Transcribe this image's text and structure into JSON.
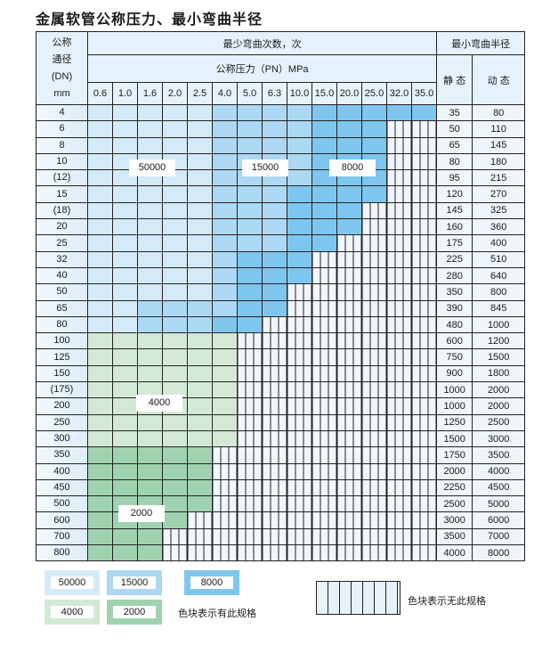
{
  "title": "金属软管公称压力、最小弯曲半径",
  "header": {
    "dn_lines": [
      "公称",
      "通径",
      "(DN)",
      "mm"
    ],
    "cycles": "最少弯曲次数，次",
    "radius": "最小弯曲半径",
    "pressure": "公称压力（PN）MPa",
    "static": "静 态",
    "dynamic": "动 态",
    "pressures": [
      "0.6",
      "1.0",
      "1.6",
      "2.0",
      "2.5",
      "4.0",
      "5.0",
      "6.3",
      "10.0",
      "15.0",
      "20.0",
      "25.0",
      "32.0",
      "35.0"
    ]
  },
  "colors": {
    "L": "#d5eaf8",
    "M": "#acd8f3",
    "D": "#7fc6ee",
    "G": "#d3e9d6",
    "H": "#9fd3b0",
    "none": "#f0f6fb"
  },
  "tone_values": {
    "L": "50000",
    "M": "15000",
    "D": "8000",
    "G": "4000",
    "H": "2000"
  },
  "rows": [
    {
      "dn": "4",
      "static": "35",
      "dynamic": "80",
      "cells": "LLLLLMMMMDDDDD"
    },
    {
      "dn": "6",
      "static": "50",
      "dynamic": "110",
      "cells": "LLLLLMMMMDDD--"
    },
    {
      "dn": "8",
      "static": "65",
      "dynamic": "145",
      "cells": "LLLLLMMMMDDD--"
    },
    {
      "dn": "10",
      "static": "80",
      "dynamic": "180",
      "cells": "LLLLLMMMMDDD--"
    },
    {
      "dn": "(12)",
      "static": "95",
      "dynamic": "215",
      "cells": "LLLLLMMMMDDD--"
    },
    {
      "dn": "15",
      "static": "120",
      "dynamic": "270",
      "cells": "LLLLLMMMDDDD--"
    },
    {
      "dn": "(18)",
      "static": "145",
      "dynamic": "325",
      "cells": "LLLLLMMMDDD---"
    },
    {
      "dn": "20",
      "static": "160",
      "dynamic": "360",
      "cells": "LLLLLMMMDDD---"
    },
    {
      "dn": "25",
      "static": "175",
      "dynamic": "400",
      "cells": "LLLLLMMMDD----"
    },
    {
      "dn": "32",
      "static": "225",
      "dynamic": "510",
      "cells": "LLLLLMDDD-----"
    },
    {
      "dn": "40",
      "static": "280",
      "dynamic": "640",
      "cells": "LLLLLMDDD-----"
    },
    {
      "dn": "50",
      "static": "350",
      "dynamic": "800",
      "cells": "LLLLLMDD------"
    },
    {
      "dn": "65",
      "static": "390",
      "dynamic": "845",
      "cells": "LLMMMMDD------"
    },
    {
      "dn": "80",
      "static": "480",
      "dynamic": "1000",
      "cells": "LLMMMDD-------"
    },
    {
      "dn": "100",
      "static": "600",
      "dynamic": "1200",
      "cells": "GGGGGG--------"
    },
    {
      "dn": "125",
      "static": "750",
      "dynamic": "1500",
      "cells": "GGGGGG--------"
    },
    {
      "dn": "150",
      "static": "900",
      "dynamic": "1800",
      "cells": "GGGGGG--------"
    },
    {
      "dn": "(175)",
      "static": "1000",
      "dynamic": "2000",
      "cells": "GGGGGG--------"
    },
    {
      "dn": "200",
      "static": "1000",
      "dynamic": "2000",
      "cells": "GGGGGG--------"
    },
    {
      "dn": "250",
      "static": "1250",
      "dynamic": "2500",
      "cells": "GGGGGG--------"
    },
    {
      "dn": "300",
      "static": "1500",
      "dynamic": "3000",
      "cells": "GGGGGG--------"
    },
    {
      "dn": "350",
      "static": "1750",
      "dynamic": "3500",
      "cells": "HHHHH---------"
    },
    {
      "dn": "400",
      "static": "2000",
      "dynamic": "4000",
      "cells": "HHHHH---------"
    },
    {
      "dn": "450",
      "static": "2250",
      "dynamic": "4500",
      "cells": "HHHHH---------"
    },
    {
      "dn": "500",
      "static": "2500",
      "dynamic": "5000",
      "cells": "HHHHH---------"
    },
    {
      "dn": "600",
      "static": "3000",
      "dynamic": "6000",
      "cells": "HHHH----------"
    },
    {
      "dn": "700",
      "static": "3500",
      "dynamic": "7000",
      "cells": "HHH-----------"
    },
    {
      "dn": "800",
      "static": "4000",
      "dynamic": "8000",
      "cells": "HHH-----------"
    }
  ],
  "region_labels": {
    "l": "50000",
    "m": "15000",
    "d": "8000",
    "g": "4000",
    "h": "2000"
  },
  "legend": {
    "l": "50000",
    "m": "15000",
    "d": "8000",
    "g": "4000",
    "h": "2000",
    "has_spec": "色块表示有此规格",
    "no_spec": "色块表示无此规格"
  }
}
